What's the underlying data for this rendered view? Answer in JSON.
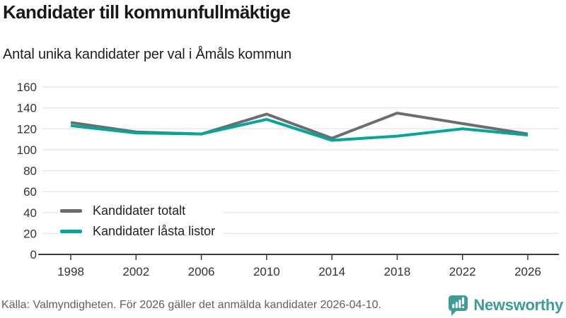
{
  "header": {
    "title": "Kandidater till kommunfullmäktige",
    "subtitle": "Antal unika kandidater per val i Åmåls kommun"
  },
  "chart_data": {
    "type": "line",
    "title": "Kandidater till kommunfullmäktige",
    "subtitle": "Antal unika kandidater per val i Åmåls kommun",
    "categories": [
      "1998",
      "2002",
      "2006",
      "2010",
      "2014",
      "2018",
      "2022",
      "2026"
    ],
    "series": [
      {
        "name": "Kandidater totalt",
        "color": "#6d6d70",
        "values": [
          126,
          117,
          115,
          134,
          111,
          135,
          125,
          115
        ]
      },
      {
        "name": "Kandidater låsta listor",
        "color": "#00a79e",
        "values": [
          123,
          116,
          115,
          129,
          109,
          113,
          120,
          114
        ]
      }
    ],
    "xlabel": "",
    "ylabel": "",
    "ylim": [
      0,
      160
    ],
    "y_ticks": [
      0,
      20,
      40,
      60,
      80,
      100,
      120,
      140,
      160
    ],
    "grid": true,
    "legend_position": "inside-bottom-left"
  },
  "footer": {
    "source": "Källa: Valmyndigheten. För 2026 gäller det anmälda kandidater 2026-04-10.",
    "brand": "Newsworthy"
  },
  "colors": {
    "line_total": "#6d6d70",
    "line_locked": "#00a79e",
    "gridline": "#e4e4e4",
    "axis": "#3b3b3b",
    "tick_label": "#333333",
    "brand_teal": "#3d9c95"
  }
}
